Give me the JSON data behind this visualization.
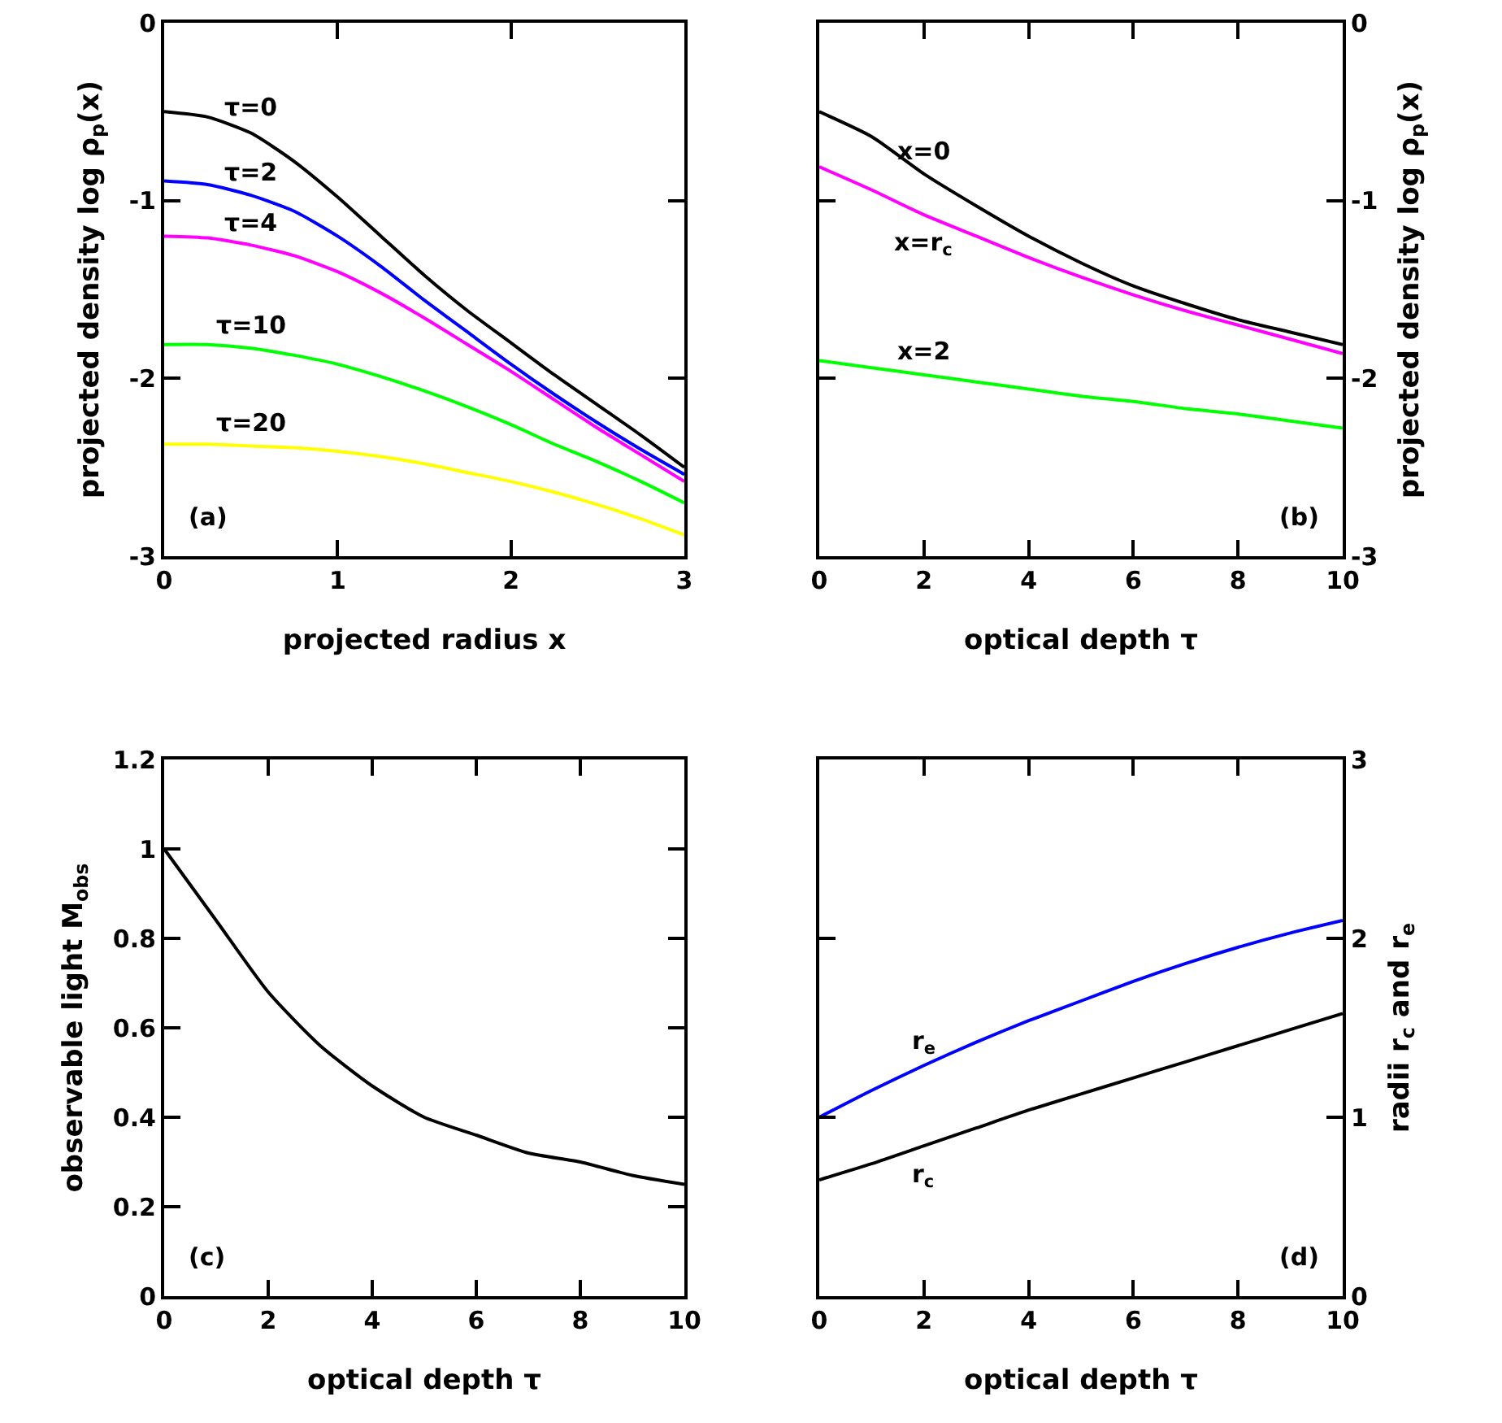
{
  "chart_data": [
    {
      "type": "line",
      "xlabel": "projected radius x",
      "ylabel": "projected density log ρ$_{p}$(x)",
      "x": [
        0,
        0.25,
        0.5,
        0.75,
        1,
        1.25,
        1.5,
        1.75,
        2,
        2.25,
        2.5,
        2.75,
        3
      ],
      "xlim": [
        0,
        3
      ],
      "xticks": [
        0,
        1,
        2,
        3
      ],
      "ylim": [
        -3,
        0
      ],
      "yticks": [
        -3,
        -2,
        -1,
        0
      ],
      "annotations": [
        "(a)"
      ],
      "series": [
        {
          "name": "τ=0",
          "color": "#000000",
          "values": [
            -0.5,
            -0.53,
            -0.62,
            -0.78,
            -0.98,
            -1.2,
            -1.42,
            -1.62,
            -1.8,
            -1.98,
            -2.15,
            -2.32,
            -2.5
          ]
        },
        {
          "name": "τ=2",
          "color": "#0000ff",
          "values": [
            -0.89,
            -0.91,
            -0.97,
            -1.06,
            -1.2,
            -1.37,
            -1.56,
            -1.74,
            -1.92,
            -2.09,
            -2.25,
            -2.4,
            -2.54
          ]
        },
        {
          "name": "τ=4",
          "color": "#ff00ff",
          "values": [
            -1.2,
            -1.21,
            -1.25,
            -1.31,
            -1.4,
            -1.52,
            -1.66,
            -1.81,
            -1.96,
            -2.12,
            -2.28,
            -2.43,
            -2.58
          ]
        },
        {
          "name": "τ=10",
          "color": "#00ff00",
          "values": [
            -1.81,
            -1.81,
            -1.83,
            -1.87,
            -1.92,
            -1.99,
            -2.07,
            -2.16,
            -2.26,
            -2.37,
            -2.47,
            -2.58,
            -2.7
          ]
        },
        {
          "name": "τ=20",
          "color": "#ffff00",
          "values": [
            -2.37,
            -2.37,
            -2.38,
            -2.39,
            -2.41,
            -2.44,
            -2.48,
            -2.53,
            -2.58,
            -2.64,
            -2.71,
            -2.79,
            -2.88
          ]
        }
      ]
    },
    {
      "type": "line",
      "xlabel": "optical depth τ",
      "y2label": "projected density log ρ$_{p}$(x)",
      "x": [
        0,
        1,
        2,
        3,
        4,
        5,
        6,
        7,
        8,
        9,
        10
      ],
      "xlim": [
        0,
        10
      ],
      "xticks": [
        0,
        2,
        4,
        6,
        8,
        10
      ],
      "y2lim": [
        -3,
        0
      ],
      "y2ticks": [
        -3,
        -2,
        -1,
        0
      ],
      "annotations": [
        "(b)"
      ],
      "series": [
        {
          "name": "x=0",
          "color": "#000000",
          "axis": "y2",
          "values": [
            -0.5,
            -0.64,
            -0.85,
            -1.03,
            -1.2,
            -1.35,
            -1.48,
            -1.58,
            -1.67,
            -1.74,
            -1.81
          ]
        },
        {
          "name": "x=r$_{c}$",
          "color": "#ff00ff",
          "axis": "y2",
          "values": [
            -0.81,
            -0.94,
            -1.08,
            -1.2,
            -1.32,
            -1.43,
            -1.53,
            -1.62,
            -1.7,
            -1.78,
            -1.86
          ]
        },
        {
          "name": "x=2",
          "color": "#00ff00",
          "axis": "y2",
          "values": [
            -1.9,
            -1.94,
            -1.98,
            -2.02,
            -2.06,
            -2.1,
            -2.13,
            -2.17,
            -2.2,
            -2.24,
            -2.28
          ]
        }
      ]
    },
    {
      "type": "line",
      "xlabel": "optical depth τ",
      "ylabel": "observable light M$_{obs}$",
      "x": [
        0,
        1,
        2,
        3,
        4,
        5,
        6,
        7,
        8,
        9,
        10
      ],
      "xlim": [
        0,
        10
      ],
      "xticks": [
        0,
        2,
        4,
        6,
        8,
        10
      ],
      "ylim": [
        0,
        1.2
      ],
      "yticks": [
        0,
        0.2,
        0.4,
        0.6,
        0.8,
        1,
        1.2
      ],
      "annotations": [
        "(c)"
      ],
      "series": [
        {
          "color": "#000000",
          "values": [
            1,
            0.84,
            0.68,
            0.56,
            0.47,
            0.4,
            0.36,
            0.32,
            0.3,
            0.27,
            0.25
          ]
        }
      ]
    },
    {
      "type": "line",
      "xlabel": "optical depth τ",
      "y2label": "radii r$_{c}$ and r$_{e}$",
      "x": [
        0,
        1,
        2,
        3,
        4,
        5,
        6,
        7,
        8,
        9,
        10
      ],
      "xlim": [
        0,
        10
      ],
      "xticks": [
        0,
        2,
        4,
        6,
        8,
        10
      ],
      "y2lim": [
        0,
        3
      ],
      "y2ticks": [
        0,
        1,
        2,
        3
      ],
      "annotations": [
        "(d)"
      ],
      "series": [
        {
          "name": "r$_{c}$",
          "color": "#000000",
          "axis": "y2",
          "values": [
            0.65,
            0.74,
            0.84,
            0.94,
            1.04,
            1.13,
            1.22,
            1.31,
            1.4,
            1.49,
            1.58
          ]
        },
        {
          "name": "r$_{e}$",
          "color": "#0000ff",
          "axis": "y2",
          "values": [
            1,
            1.15,
            1.29,
            1.42,
            1.54,
            1.65,
            1.76,
            1.86,
            1.95,
            2.03,
            2.1
          ]
        }
      ]
    }
  ]
}
